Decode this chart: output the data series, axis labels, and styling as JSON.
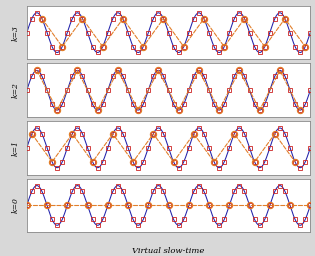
{
  "n_panels": 4,
  "k_labels": [
    "k=3",
    "k=2",
    "k=1",
    "k=0"
  ],
  "xlabel": "Virtual slow-time",
  "bg_color": "#d8d8d8",
  "panel_bg": "#ffffff",
  "solid_color": "#2222aa",
  "samples_color": "#cc2222",
  "resamp_color": "#e07820",
  "n_pulses": 56,
  "N_slow": 4,
  "f_fast": 7.0,
  "slow_freq_k": [
    3,
    2,
    1,
    0
  ],
  "figsize": [
    3.15,
    2.56
  ],
  "dpi": 100,
  "xlabel_fontsize": 6.0,
  "ylabel_fontsize": 5.5
}
